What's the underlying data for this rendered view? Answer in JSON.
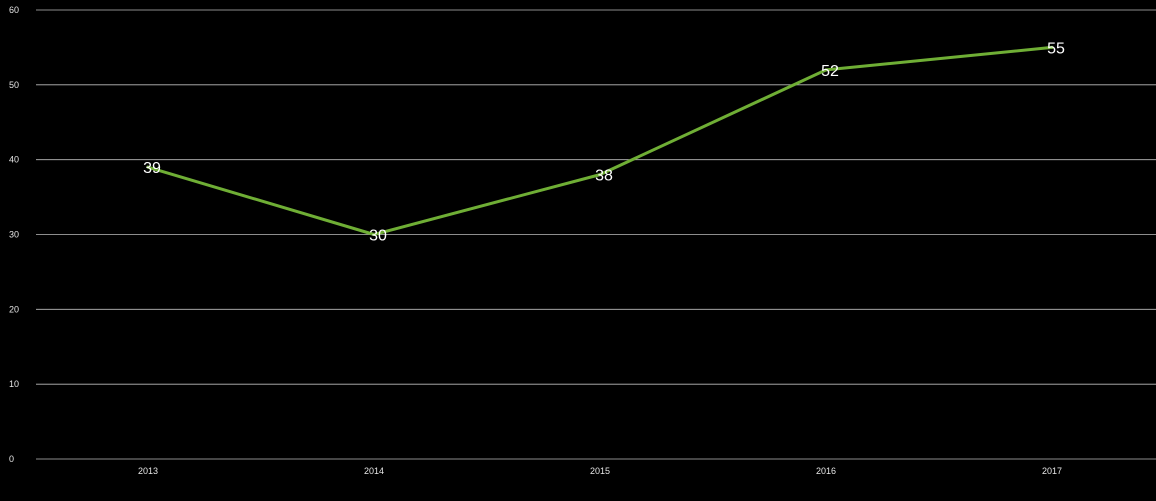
{
  "chart_data": {
    "type": "line",
    "categories": [
      "2013",
      "2014",
      "2015",
      "2016",
      "2017"
    ],
    "series": [
      {
        "values": [
          39,
          30,
          38,
          52,
          55
        ],
        "color": "#6fae35"
      }
    ],
    "data_labels": [
      "39",
      "30",
      "38",
      "52",
      "55"
    ],
    "yticks": [
      "0",
      "10",
      "20",
      "30",
      "40",
      "50",
      "60"
    ],
    "ylim": [
      0,
      60
    ],
    "grid": true,
    "legend": "none",
    "title": "",
    "xlabel": "",
    "ylabel": "",
    "background": "#000000",
    "grid_color": "#bdbdbd",
    "text_color": "#e6e6e6"
  }
}
